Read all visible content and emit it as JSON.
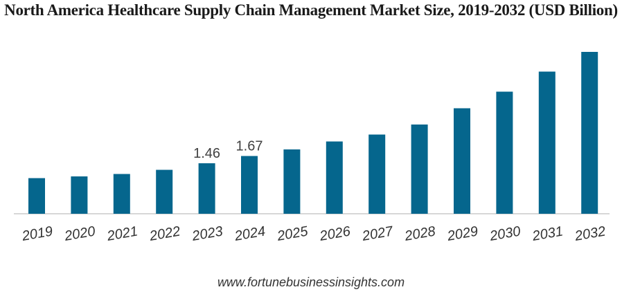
{
  "chart_data": {
    "type": "bar",
    "title": "North America Healthcare Supply Chain Management Market Size, 2019-2032 (USD Billion)",
    "xlabel": "",
    "ylabel": "",
    "categories": [
      "2019",
      "2020",
      "2021",
      "2022",
      "2023",
      "2024",
      "2025",
      "2026",
      "2027",
      "2028",
      "2029",
      "2030",
      "2031",
      "2032"
    ],
    "values": [
      1.03,
      1.08,
      1.15,
      1.27,
      1.46,
      1.67,
      1.86,
      2.09,
      2.29,
      2.58,
      3.05,
      3.53,
      4.11,
      4.68
    ],
    "data_labels": [
      {
        "index": 4,
        "text": "1.46"
      },
      {
        "index": 5,
        "text": "1.67"
      }
    ],
    "ylim": [
      0,
      4.9
    ],
    "grid": false,
    "legend": "none",
    "bar_color": "#05668d"
  },
  "footer": {
    "source": "www.fortunebusinessinsights.com"
  }
}
